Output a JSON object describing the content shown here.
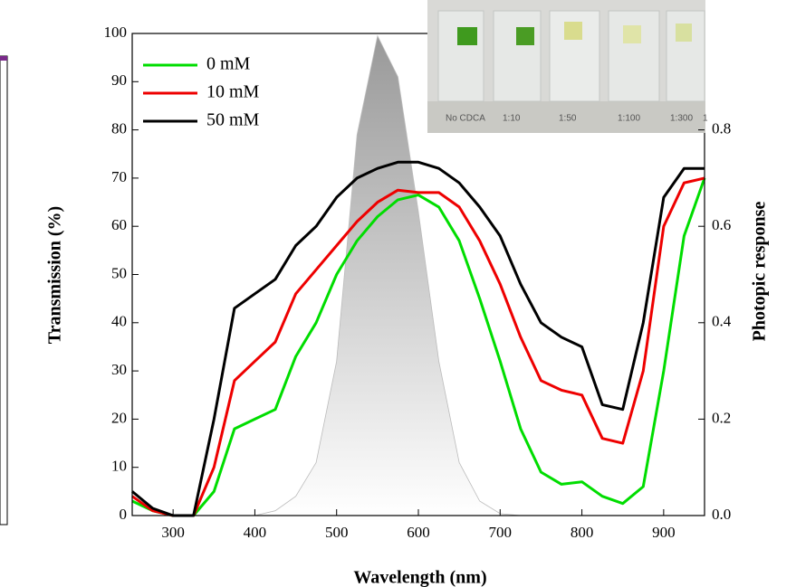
{
  "chart_data": {
    "type": "line",
    "x_label": "Wavelength (nm)",
    "y_label": "Transmission (%)",
    "y2_label": "Photopic response",
    "x": [
      250,
      275,
      300,
      325,
      350,
      375,
      400,
      425,
      450,
      475,
      500,
      525,
      550,
      575,
      600,
      625,
      650,
      675,
      700,
      725,
      750,
      775,
      800,
      825,
      850,
      875,
      900,
      925,
      950
    ],
    "series": [
      {
        "name": "0 mM",
        "color": "#00dd00",
        "values": [
          3,
          1,
          0,
          0,
          5,
          18,
          20,
          22,
          33,
          40,
          50,
          57,
          62,
          65.5,
          66.5,
          64,
          57,
          45,
          32,
          18,
          9,
          6.5,
          7,
          4,
          2.5,
          6,
          30,
          58,
          70
        ]
      },
      {
        "name": "10 mM",
        "color": "#ee0000",
        "values": [
          4,
          1,
          0,
          0,
          10,
          28,
          32,
          36,
          46,
          51,
          56,
          61,
          65,
          67.5,
          67,
          67,
          64,
          57,
          48,
          37,
          28,
          26,
          25,
          16,
          15,
          30,
          60,
          69,
          70
        ]
      },
      {
        "name": "50 mM",
        "color": "#000000",
        "values": [
          5,
          1.5,
          0,
          0,
          20,
          43,
          46,
          49,
          56,
          60,
          66,
          70,
          72,
          73.3,
          73.3,
          72,
          69,
          64,
          58,
          48,
          40,
          37,
          35,
          23,
          22,
          40,
          66,
          72,
          72
        ]
      },
      {
        "axis": "y2",
        "color": "#888888",
        "values": [
          0,
          0,
          0,
          0,
          0,
          0,
          0,
          0.01,
          0.04,
          0.11,
          0.32,
          0.79,
          0.995,
          0.91,
          0.63,
          0.32,
          0.11,
          0.03,
          0.004,
          0,
          0,
          0,
          0,
          0,
          0,
          0,
          0,
          0,
          0
        ]
      }
    ],
    "xlim": [
      250,
      950
    ],
    "xticks": [
      300,
      400,
      500,
      600,
      700,
      800,
      900
    ],
    "ylim": [
      0,
      100
    ],
    "yticks": [
      0,
      10,
      20,
      30,
      40,
      50,
      60,
      70,
      80,
      90,
      100
    ],
    "y2lim": [
      0,
      1
    ],
    "y2ticks": [
      {
        "value": 0,
        "label": "0.0"
      },
      0.2,
      0.4,
      0.6,
      0.8
    ],
    "legend": "top-left"
  },
  "inset": {
    "labels": [
      "No CDCA",
      "1:10",
      "1:50",
      "1:100",
      "1:300",
      "1"
    ]
  }
}
